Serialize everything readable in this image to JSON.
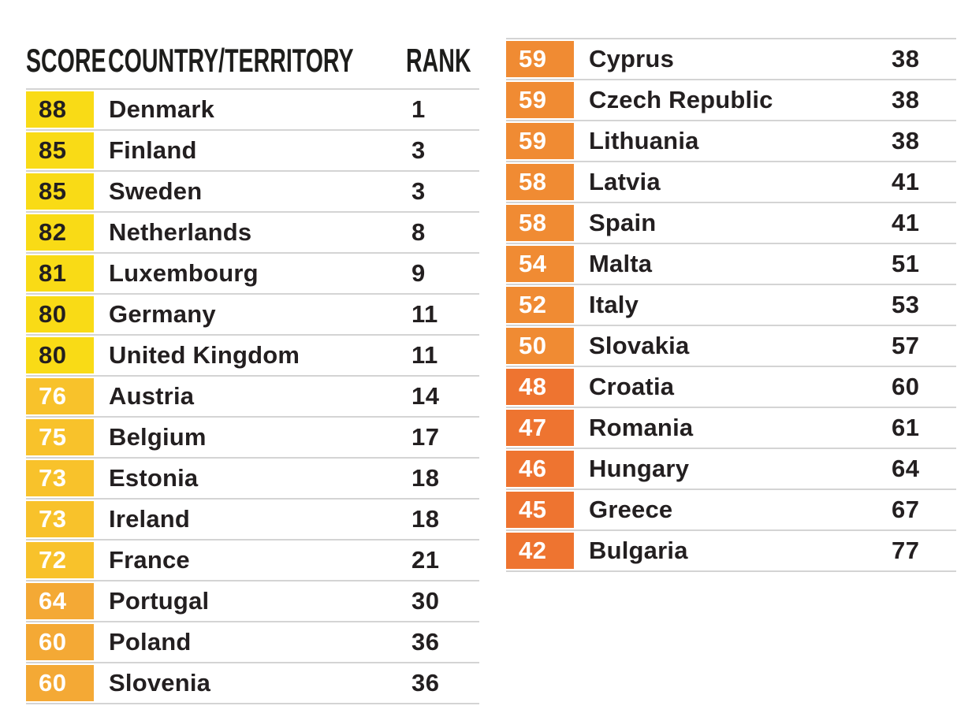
{
  "table": {
    "headers": {
      "score": "SCORE",
      "country": "COUNTRY/TERRITORY",
      "rank": "RANK"
    },
    "tier_colors": {
      "t80": {
        "bg": "#F9DB16",
        "text": "#231F20"
      },
      "t70": {
        "bg": "#F8C22B",
        "text": "#FFFFFF"
      },
      "t60": {
        "bg": "#F4A935",
        "text": "#FFFFFF"
      },
      "t50": {
        "bg": "#F08B33",
        "text": "#FFFFFF"
      },
      "t40": {
        "bg": "#EE7430",
        "text": "#FFFFFF"
      }
    },
    "left_rows": [
      {
        "score": "88",
        "country": "Denmark",
        "rank": "1",
        "tier": "t80"
      },
      {
        "score": "85",
        "country": "Finland",
        "rank": "3",
        "tier": "t80"
      },
      {
        "score": "85",
        "country": "Sweden",
        "rank": "3",
        "tier": "t80"
      },
      {
        "score": "82",
        "country": "Netherlands",
        "rank": "8",
        "tier": "t80"
      },
      {
        "score": "81",
        "country": "Luxembourg",
        "rank": "9",
        "tier": "t80"
      },
      {
        "score": "80",
        "country": "Germany",
        "rank": "11",
        "tier": "t80"
      },
      {
        "score": "80",
        "country": "United Kingdom",
        "rank": "11",
        "tier": "t80"
      },
      {
        "score": "76",
        "country": "Austria",
        "rank": "14",
        "tier": "t70"
      },
      {
        "score": "75",
        "country": "Belgium",
        "rank": "17",
        "tier": "t70"
      },
      {
        "score": "73",
        "country": "Estonia",
        "rank": "18",
        "tier": "t70"
      },
      {
        "score": "73",
        "country": "Ireland",
        "rank": "18",
        "tier": "t70"
      },
      {
        "score": "72",
        "country": "France",
        "rank": "21",
        "tier": "t70"
      },
      {
        "score": "64",
        "country": "Portugal",
        "rank": "30",
        "tier": "t60"
      },
      {
        "score": "60",
        "country": "Poland",
        "rank": "36",
        "tier": "t60"
      },
      {
        "score": "60",
        "country": "Slovenia",
        "rank": "36",
        "tier": "t60"
      }
    ],
    "right_rows": [
      {
        "score": "59",
        "country": "Cyprus",
        "rank": "38",
        "tier": "t50"
      },
      {
        "score": "59",
        "country": "Czech Republic",
        "rank": "38",
        "tier": "t50"
      },
      {
        "score": "59",
        "country": "Lithuania",
        "rank": "38",
        "tier": "t50"
      },
      {
        "score": "58",
        "country": "Latvia",
        "rank": "41",
        "tier": "t50"
      },
      {
        "score": "58",
        "country": "Spain",
        "rank": "41",
        "tier": "t50"
      },
      {
        "score": "54",
        "country": "Malta",
        "rank": "51",
        "tier": "t50"
      },
      {
        "score": "52",
        "country": "Italy",
        "rank": "53",
        "tier": "t50"
      },
      {
        "score": "50",
        "country": "Slovakia",
        "rank": "57",
        "tier": "t50"
      },
      {
        "score": "48",
        "country": "Croatia",
        "rank": "60",
        "tier": "t40"
      },
      {
        "score": "47",
        "country": "Romania",
        "rank": "61",
        "tier": "t40"
      },
      {
        "score": "46",
        "country": "Hungary",
        "rank": "64",
        "tier": "t40"
      },
      {
        "score": "45",
        "country": "Greece",
        "rank": "67",
        "tier": "t40"
      },
      {
        "score": "42",
        "country": "Bulgaria",
        "rank": "77",
        "tier": "t40"
      }
    ]
  },
  "chart_data": {
    "type": "table",
    "title": "",
    "columns": [
      "SCORE",
      "COUNTRY/TERRITORY",
      "RANK"
    ],
    "rows": [
      [
        88,
        "Denmark",
        1
      ],
      [
        85,
        "Finland",
        3
      ],
      [
        85,
        "Sweden",
        3
      ],
      [
        82,
        "Netherlands",
        8
      ],
      [
        81,
        "Luxembourg",
        9
      ],
      [
        80,
        "Germany",
        11
      ],
      [
        80,
        "United Kingdom",
        11
      ],
      [
        76,
        "Austria",
        14
      ],
      [
        75,
        "Belgium",
        17
      ],
      [
        73,
        "Estonia",
        18
      ],
      [
        73,
        "Ireland",
        18
      ],
      [
        72,
        "France",
        21
      ],
      [
        64,
        "Portugal",
        30
      ],
      [
        60,
        "Poland",
        36
      ],
      [
        60,
        "Slovenia",
        36
      ],
      [
        59,
        "Cyprus",
        38
      ],
      [
        59,
        "Czech Republic",
        38
      ],
      [
        59,
        "Lithuania",
        38
      ],
      [
        58,
        "Latvia",
        41
      ],
      [
        58,
        "Spain",
        41
      ],
      [
        54,
        "Malta",
        51
      ],
      [
        52,
        "Italy",
        53
      ],
      [
        50,
        "Slovakia",
        57
      ],
      [
        48,
        "Croatia",
        60
      ],
      [
        47,
        "Romania",
        61
      ],
      [
        46,
        "Hungary",
        64
      ],
      [
        45,
        "Greece",
        67
      ],
      [
        42,
        "Bulgaria",
        77
      ]
    ],
    "layout": {
      "split": "two columns; left column has header row, right column continues rows 16-28",
      "score_color_buckets": {
        "80-100": "#F9DB16",
        "70-79": "#F8C22B",
        "60-69": "#F4A935",
        "50-59": "#F08B33",
        "40-49": "#EE7430"
      }
    }
  }
}
